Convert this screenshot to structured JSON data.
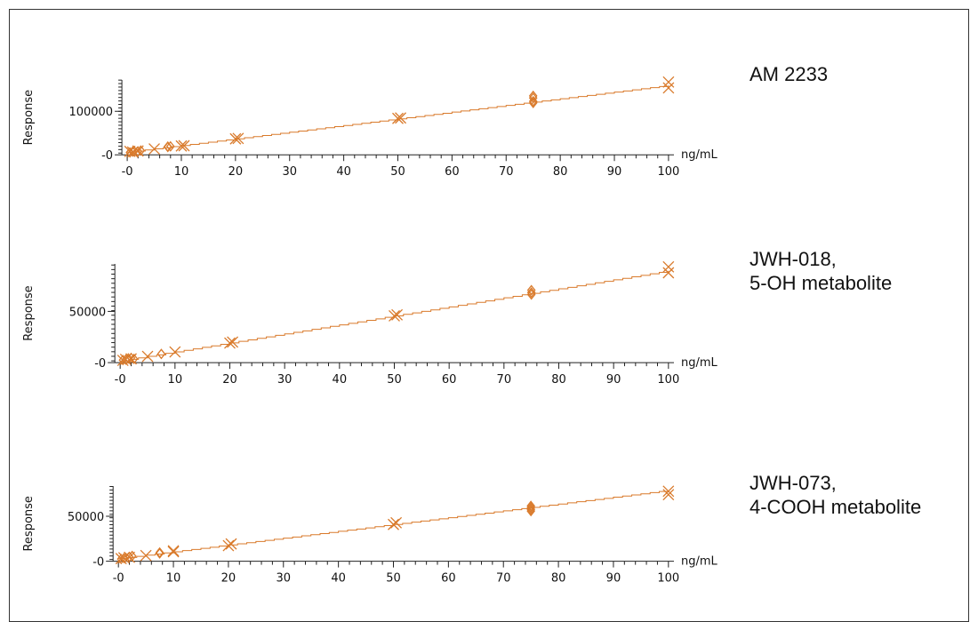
{
  "colors": {
    "series": "#d97a2b",
    "axis": "#222222",
    "text": "#111111"
  },
  "chart_data": [
    {
      "type": "scatter",
      "name_label": [
        "AM 2233"
      ],
      "xlabel": "ng/mL",
      "ylabel": "Response",
      "xlim": [
        -1,
        101
      ],
      "ylim": [
        -8000,
        175000
      ],
      "xticks": [
        {
          "value": 0,
          "label": "-0"
        },
        {
          "value": 10,
          "label": "10"
        },
        {
          "value": 20,
          "label": "20"
        },
        {
          "value": 30,
          "label": "30"
        },
        {
          "value": 40,
          "label": "40"
        },
        {
          "value": 50,
          "label": "50"
        },
        {
          "value": 60,
          "label": "60"
        },
        {
          "value": 70,
          "label": "70"
        },
        {
          "value": 80,
          "label": "80"
        },
        {
          "value": 90,
          "label": "90"
        },
        {
          "value": 100,
          "label": "100"
        }
      ],
      "yticks": [
        {
          "value": 0,
          "label": "-0"
        },
        {
          "value": 100000,
          "label": "100000"
        }
      ],
      "fit_line": {
        "x": [
          0,
          100
        ],
        "y": [
          2000,
          162000
        ]
      },
      "points_x": [
        [
          0.5,
          4000
        ],
        [
          1,
          2500
        ],
        [
          2,
          5000
        ],
        [
          5,
          10000
        ],
        [
          10,
          17000
        ],
        [
          10.5,
          17500
        ],
        [
          20,
          34000
        ],
        [
          20.5,
          35000
        ],
        [
          50,
          83000
        ],
        [
          50.5,
          84000
        ],
        [
          100,
          170000
        ],
        [
          100,
          156000
        ]
      ],
      "points_diamond": [
        [
          0.5,
          1500
        ],
        [
          1,
          3500
        ],
        [
          2,
          4000
        ],
        [
          2.5,
          6000
        ],
        [
          7.5,
          14500
        ],
        [
          7.5,
          15500
        ],
        [
          8,
          16000
        ],
        [
          75,
          120000
        ],
        [
          75,
          124000
        ],
        [
          75,
          132000
        ],
        [
          75,
          137000
        ]
      ]
    },
    {
      "type": "scatter",
      "name_label": [
        "JWH-018,",
        "5-OH metabolite"
      ],
      "xlabel": "ng/mL",
      "ylabel": "Response",
      "xlim": [
        -1,
        101
      ],
      "ylim": [
        -3500,
        98000
      ],
      "xticks": [
        {
          "value": 0,
          "label": "-0"
        },
        {
          "value": 10,
          "label": "10"
        },
        {
          "value": 20,
          "label": "20"
        },
        {
          "value": 30,
          "label": "30"
        },
        {
          "value": 40,
          "label": "40"
        },
        {
          "value": 50,
          "label": "50"
        },
        {
          "value": 60,
          "label": "60"
        },
        {
          "value": 70,
          "label": "70"
        },
        {
          "value": 80,
          "label": "80"
        },
        {
          "value": 90,
          "label": "90"
        },
        {
          "value": 100,
          "label": "100"
        }
      ],
      "yticks": [
        {
          "value": 0,
          "label": "-0"
        },
        {
          "value": 50000,
          "label": "50000"
        }
      ],
      "fit_line": {
        "x": [
          0,
          100
        ],
        "y": [
          0,
          91000
        ]
      },
      "points_x": [
        [
          0.5,
          500
        ],
        [
          1,
          1500
        ],
        [
          2,
          2000
        ],
        [
          5,
          4500
        ],
        [
          10,
          9000
        ],
        [
          20,
          18000
        ],
        [
          20.5,
          19000
        ],
        [
          50,
          45500
        ],
        [
          50.5,
          46500
        ],
        [
          100,
          95000
        ],
        [
          100,
          89000
        ]
      ],
      "points_diamond": [
        [
          0.5,
          800
        ],
        [
          1,
          1200
        ],
        [
          1.5,
          2500
        ],
        [
          2,
          3000
        ],
        [
          2.5,
          2000
        ],
        [
          7.5,
          7000
        ],
        [
          75,
          67000
        ],
        [
          75,
          69000
        ],
        [
          75,
          71500
        ]
      ]
    },
    {
      "type": "scatter",
      "name_label": [
        "JWH-073,",
        "4-COOH metabolite"
      ],
      "xlabel": "ng/mL",
      "ylabel": "Response",
      "xlim": [
        -1,
        101
      ],
      "ylim": [
        -3500,
        85000
      ],
      "xticks": [
        {
          "value": 0,
          "label": "-0"
        },
        {
          "value": 10,
          "label": "10"
        },
        {
          "value": 20,
          "label": "20"
        },
        {
          "value": 30,
          "label": "30"
        },
        {
          "value": 40,
          "label": "40"
        },
        {
          "value": 50,
          "label": "50"
        },
        {
          "value": 60,
          "label": "60"
        },
        {
          "value": 70,
          "label": "70"
        },
        {
          "value": 80,
          "label": "80"
        },
        {
          "value": 90,
          "label": "90"
        },
        {
          "value": 100,
          "label": "100"
        }
      ],
      "yticks": [
        {
          "value": 0,
          "label": "-0"
        },
        {
          "value": 50000,
          "label": "50000"
        }
      ],
      "fit_line": {
        "x": [
          0,
          100
        ],
        "y": [
          1000,
          80000
        ]
      },
      "points_x": [
        [
          0.5,
          1000
        ],
        [
          1,
          2000
        ],
        [
          2,
          2500
        ],
        [
          5,
          4500
        ],
        [
          10,
          9000
        ],
        [
          10,
          10000
        ],
        [
          20,
          16000
        ],
        [
          20.5,
          18000
        ],
        [
          50,
          40500
        ],
        [
          50.5,
          42500
        ],
        [
          100,
          79000
        ],
        [
          100,
          75000
        ]
      ],
      "points_diamond": [
        [
          0.5,
          500
        ],
        [
          1,
          1500
        ],
        [
          2,
          3000
        ],
        [
          2.5,
          4000
        ],
        [
          7.5,
          7000
        ],
        [
          7.5,
          8000
        ],
        [
          75,
          56000
        ],
        [
          75,
          58000
        ],
        [
          75,
          60000
        ],
        [
          75,
          62000
        ]
      ]
    }
  ]
}
